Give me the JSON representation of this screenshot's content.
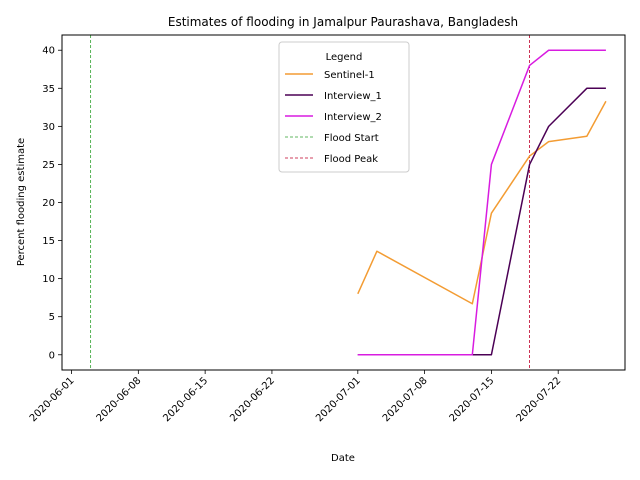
{
  "chart_data": {
    "type": "line",
    "title": "Estimates of flooding in Jamalpur Paurashava, Bangladesh",
    "xlabel": "Date",
    "ylabel": "Percent flooding estimate",
    "x_range": [
      "2020-05-31",
      "2020-07-29"
    ],
    "ylim": [
      -2,
      42
    ],
    "x_ticks": [
      "2020-06-01",
      "2020-06-08",
      "2020-06-15",
      "2020-06-22",
      "2020-07-01",
      "2020-07-08",
      "2020-07-15",
      "2020-07-22"
    ],
    "y_ticks": [
      0,
      5,
      10,
      15,
      20,
      25,
      30,
      35,
      40
    ],
    "grid": false,
    "legend": {
      "title": "Legend",
      "placement": "upper center"
    },
    "series": [
      {
        "name": "Sentinel-1",
        "color": "#f39c33",
        "style": "solid",
        "points": [
          [
            "2020-07-01",
            8.0
          ],
          [
            "2020-07-03",
            13.6
          ],
          [
            "2020-07-13",
            6.7
          ],
          [
            "2020-07-15",
            18.6
          ],
          [
            "2020-07-19",
            26.1
          ],
          [
            "2020-07-21",
            28.0
          ],
          [
            "2020-07-25",
            28.7
          ],
          [
            "2020-07-27",
            33.3
          ]
        ]
      },
      {
        "name": "Interview_1",
        "color": "#4b0055",
        "style": "solid",
        "points": [
          [
            "2020-07-01",
            0
          ],
          [
            "2020-07-15",
            0
          ],
          [
            "2020-07-19",
            25.0
          ],
          [
            "2020-07-21",
            30.0
          ],
          [
            "2020-07-25",
            35.0
          ],
          [
            "2020-07-27",
            35.0
          ]
        ]
      },
      {
        "name": "Interview_2",
        "color": "#d81ce0",
        "style": "solid",
        "points": [
          [
            "2020-07-01",
            0
          ],
          [
            "2020-07-13",
            0
          ],
          [
            "2020-07-15",
            25.0
          ],
          [
            "2020-07-19",
            38.0
          ],
          [
            "2020-07-21",
            40.0
          ],
          [
            "2020-07-27",
            40.0
          ]
        ]
      }
    ],
    "vlines": [
      {
        "name": "Flood Start",
        "date": "2020-06-03",
        "color": "#2ca02c",
        "style": "dashed"
      },
      {
        "name": "Flood Peak",
        "date": "2020-07-19",
        "color": "#c0002a",
        "style": "dashed"
      }
    ]
  }
}
